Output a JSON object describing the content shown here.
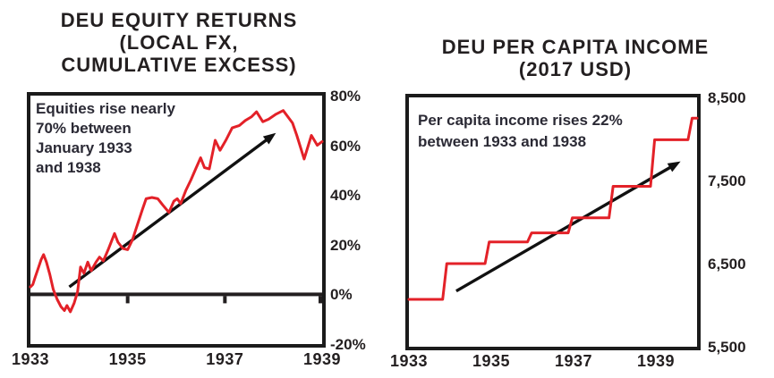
{
  "colors": {
    "ink": "#231f20",
    "line_red": "#e32128",
    "box_border": "#1b1b1b",
    "arrow_black": "#111111"
  },
  "chart_data": [
    {
      "type": "line",
      "title": "DEU EQUITY RETURNS\n(LOCAL FX,\nCUMULATIVE EXCESS)",
      "annotation": "Equities rise nearly\n70% between\nJanuary 1933\nand 1938",
      "xlim": [
        1933,
        1939
      ],
      "ylim": [
        -20,
        80
      ],
      "grid": false,
      "legend": null,
      "x_ticks": [
        {
          "label": "1933",
          "value": 1933
        },
        {
          "label": "1935",
          "value": 1935
        },
        {
          "label": "1937",
          "value": 1937
        },
        {
          "label": "1939",
          "value": 1939
        }
      ],
      "y_ticks": [
        {
          "label": "80%",
          "value": 80
        },
        {
          "label": "60%",
          "value": 60
        },
        {
          "label": "40%",
          "value": 40
        },
        {
          "label": "20%",
          "value": 20
        },
        {
          "label": "0%",
          "value": 0
        },
        {
          "label": "-20%",
          "value": -20
        }
      ],
      "zero_line": {
        "value": 0,
        "tick_xs": [
          1935,
          1937,
          1939
        ]
      },
      "series": [
        {
          "name": "deu-equity-cumulative-excess-return-pct",
          "color": "#e32128",
          "points": [
            [
              1933.0,
              3
            ],
            [
              1933.05,
              4
            ],
            [
              1933.1,
              7
            ],
            [
              1933.17,
              11
            ],
            [
              1933.22,
              14
            ],
            [
              1933.27,
              16
            ],
            [
              1933.33,
              13
            ],
            [
              1933.4,
              8
            ],
            [
              1933.47,
              2
            ],
            [
              1933.55,
              -2
            ],
            [
              1933.63,
              -5
            ],
            [
              1933.7,
              -6.5
            ],
            [
              1933.75,
              -4.5
            ],
            [
              1933.82,
              -7
            ],
            [
              1933.9,
              -3.5
            ],
            [
              1933.97,
              1
            ],
            [
              1934.03,
              11
            ],
            [
              1934.1,
              8.5
            ],
            [
              1934.18,
              13
            ],
            [
              1934.25,
              9.5
            ],
            [
              1934.35,
              13
            ],
            [
              1934.42,
              15
            ],
            [
              1934.5,
              13.5
            ],
            [
              1934.6,
              18
            ],
            [
              1934.68,
              22
            ],
            [
              1934.73,
              24.5
            ],
            [
              1934.8,
              21
            ],
            [
              1934.9,
              18.5
            ],
            [
              1935.0,
              18
            ],
            [
              1935.1,
              22
            ],
            [
              1935.2,
              28
            ],
            [
              1935.3,
              34
            ],
            [
              1935.38,
              38.5
            ],
            [
              1935.5,
              39
            ],
            [
              1935.62,
              38.5
            ],
            [
              1935.72,
              36
            ],
            [
              1935.85,
              33
            ],
            [
              1935.95,
              37.5
            ],
            [
              1936.02,
              38.5
            ],
            [
              1936.09,
              36.5
            ],
            [
              1936.2,
              42
            ],
            [
              1936.3,
              46
            ],
            [
              1936.4,
              50.5
            ],
            [
              1936.5,
              55
            ],
            [
              1936.58,
              51
            ],
            [
              1936.68,
              50.5
            ],
            [
              1936.8,
              62
            ],
            [
              1936.9,
              58
            ],
            [
              1937.02,
              62
            ],
            [
              1937.15,
              67
            ],
            [
              1937.3,
              68
            ],
            [
              1937.42,
              70
            ],
            [
              1937.55,
              71.5
            ],
            [
              1937.65,
              73.5
            ],
            [
              1937.78,
              69.5
            ],
            [
              1937.9,
              70.5
            ],
            [
              1938.05,
              72.5
            ],
            [
              1938.2,
              74
            ],
            [
              1938.39,
              69
            ],
            [
              1938.48,
              64
            ],
            [
              1938.63,
              54.5
            ],
            [
              1938.78,
              64
            ],
            [
              1938.9,
              60
            ],
            [
              1939.0,
              61.5
            ]
          ]
        }
      ],
      "trend_arrow": {
        "from": [
          1933.8,
          3
        ],
        "to": [
          1938.05,
          65
        ]
      }
    },
    {
      "type": "line",
      "title": "DEU PER CAPITA INCOME\n(2017 USD)",
      "annotation": "Per capita income rises 22%\nbetween 1933 and 1938",
      "xlim": [
        1933,
        1940
      ],
      "ylim": [
        5500,
        8500
      ],
      "grid": false,
      "legend": null,
      "x_ticks": [
        {
          "label": "1933",
          "value": 1933
        },
        {
          "label": "1935",
          "value": 1935
        },
        {
          "label": "1937",
          "value": 1937
        },
        {
          "label": "1939",
          "value": 1939
        }
      ],
      "y_ticks": [
        {
          "label": "8,500",
          "value": 8500
        },
        {
          "label": "7,500",
          "value": 7500
        },
        {
          "label": "6,500",
          "value": 6500
        },
        {
          "label": "5,500",
          "value": 5500
        }
      ],
      "annual_values": {
        "1933": 6070,
        "1934": 6500,
        "1935": 6760,
        "1936": 6870,
        "1937": 7050,
        "1938": 7430,
        "1939": 7990,
        "1940": 8250
      },
      "series": [
        {
          "name": "deu-per-capita-income-2017-usd",
          "color": "#e32128",
          "points": [
            [
              1933.0,
              6070
            ],
            [
              1933.82,
              6070
            ],
            [
              1933.92,
              6500
            ],
            [
              1934.85,
              6500
            ],
            [
              1934.95,
              6760
            ],
            [
              1935.88,
              6760
            ],
            [
              1935.98,
              6870
            ],
            [
              1936.87,
              6870
            ],
            [
              1936.97,
              7050
            ],
            [
              1937.86,
              7050
            ],
            [
              1937.96,
              7430
            ],
            [
              1938.87,
              7430
            ],
            [
              1938.97,
              7990
            ],
            [
              1939.78,
              7990
            ],
            [
              1939.88,
              8250
            ],
            [
              1940.0,
              8250
            ]
          ]
        }
      ],
      "trend_arrow": {
        "from": [
          1934.15,
          6170
        ],
        "to": [
          1939.6,
          7730
        ]
      }
    }
  ]
}
